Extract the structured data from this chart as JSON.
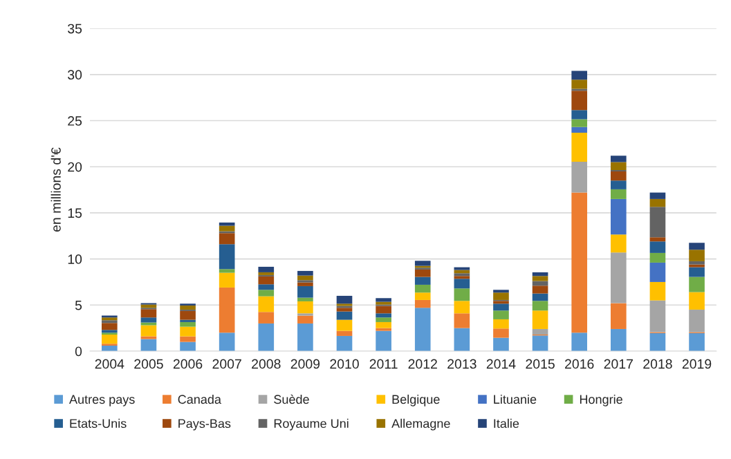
{
  "chart_data": {
    "type": "bar",
    "stacked": true,
    "ylabel": "en millions d'€",
    "categories": [
      "2004",
      "2005",
      "2006",
      "2007",
      "2008",
      "2009",
      "2010",
      "2011",
      "2012",
      "2013",
      "2014",
      "2015",
      "2016",
      "2017",
      "2018",
      "2019"
    ],
    "series": [
      {
        "name": "Autres pays",
        "color": "#5b9bd5",
        "values": [
          0.6,
          1.3,
          1.0,
          2.0,
          3.0,
          3.0,
          1.65,
          2.2,
          4.7,
          2.5,
          1.45,
          1.7,
          2.0,
          2.4,
          1.95,
          1.95
        ]
      },
      {
        "name": "Canada",
        "color": "#ed7d31",
        "values": [
          0.2,
          0.3,
          0.6,
          4.9,
          1.25,
          0.85,
          0.55,
          0.3,
          0.85,
          1.6,
          1.0,
          0.1,
          15.2,
          2.8,
          0.1,
          0.1
        ]
      },
      {
        "name": "Suède",
        "color": "#a5a5a5",
        "values": [
          0,
          0,
          0,
          0,
          0,
          0.25,
          0,
          0,
          0,
          0,
          0,
          0.6,
          3.35,
          5.5,
          3.45,
          2.45
        ]
      },
      {
        "name": "Belgique",
        "color": "#ffc000",
        "values": [
          1.0,
          1.2,
          1.05,
          1.6,
          1.7,
          1.3,
          1.2,
          0.65,
          0.8,
          1.35,
          1.0,
          2.0,
          3.15,
          1.95,
          2.0,
          1.9
        ]
      },
      {
        "name": "Lituanie",
        "color": "#4472c4",
        "values": [
          0,
          0,
          0,
          0,
          0,
          0,
          0,
          0,
          0,
          0,
          0,
          0,
          0.6,
          3.85,
          2.1,
          0
        ]
      },
      {
        "name": "Hongrie",
        "color": "#70ad47",
        "values": [
          0.2,
          0.3,
          0.5,
          0.4,
          0.7,
          0.4,
          0,
          0.5,
          0.85,
          1.35,
          0.95,
          1.05,
          0.85,
          1.05,
          1.05,
          1.65
        ]
      },
      {
        "name": "Etats-Unis",
        "color": "#255e91",
        "values": [
          0.3,
          0.55,
          0.25,
          2.7,
          0.6,
          1.25,
          0.9,
          0.45,
          0.85,
          1.05,
          0.75,
          0.8,
          1.0,
          0.95,
          1.25,
          1.05
        ]
      },
      {
        "name": "Pays-Bas",
        "color": "#9e480e",
        "values": [
          0.75,
          0.9,
          0.95,
          1.2,
          0.85,
          0.4,
          0.4,
          0.8,
          0.8,
          0.3,
          0.3,
          0.85,
          2.1,
          1.0,
          0.45,
          0.3
        ]
      },
      {
        "name": "Royaume Uni",
        "color": "#636363",
        "values": [
          0.3,
          0.15,
          0.15,
          0.2,
          0.15,
          0.25,
          0.2,
          0.15,
          0.2,
          0.3,
          0.1,
          0.5,
          0.2,
          0.15,
          3.3,
          0.35
        ]
      },
      {
        "name": "Allemagne",
        "color": "#997300",
        "values": [
          0.3,
          0.35,
          0.45,
          0.6,
          0.3,
          0.5,
          0.25,
          0.3,
          0.2,
          0.35,
          0.8,
          0.55,
          1.0,
          0.85,
          0.85,
          1.25
        ]
      },
      {
        "name": "Italie",
        "color": "#264478",
        "values": [
          0.2,
          0.15,
          0.2,
          0.35,
          0.6,
          0.5,
          0.85,
          0.4,
          0.55,
          0.3,
          0.3,
          0.4,
          0.95,
          0.7,
          0.7,
          0.75
        ]
      }
    ],
    "ylim": [
      0,
      35
    ],
    "yticks": [
      0,
      5,
      10,
      15,
      20,
      25,
      30,
      35
    ],
    "grid": "y",
    "legend": "bottom"
  }
}
